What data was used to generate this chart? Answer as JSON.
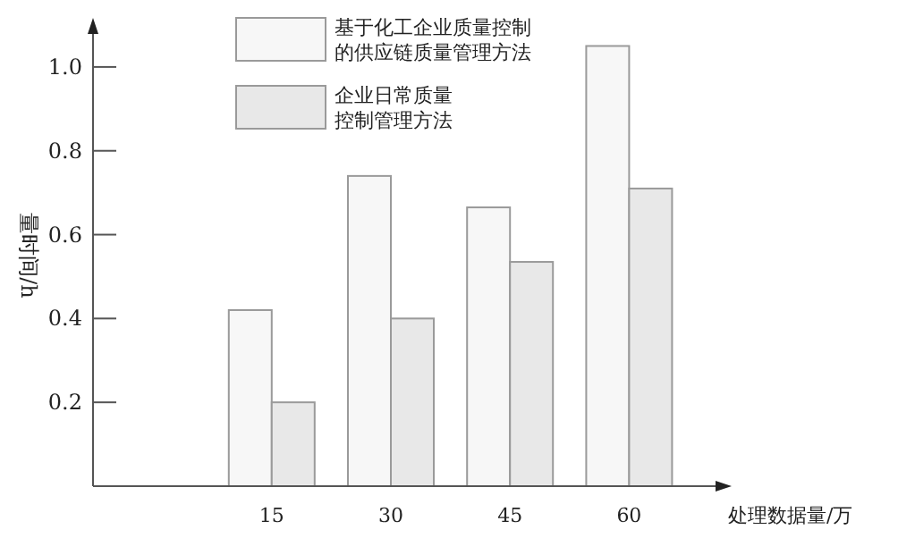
{
  "chart_data": {
    "type": "bar",
    "ylabel": "量时间/h",
    "xlabel": "处理数据量/万",
    "categories": [
      null,
      "15",
      "30",
      "45",
      "60"
    ],
    "series": [
      {
        "name": "基于化工企业质量控制的供应链质量管理方法",
        "color": "#f7f7f7",
        "values": [
          null,
          0.42,
          0.74,
          0.665,
          1.05
        ]
      },
      {
        "name": "企业日常质量控制管理方法",
        "color": "#e8e8e8",
        "values": [
          null,
          0.2,
          0.4,
          0.535,
          0.71
        ]
      }
    ],
    "ylim": [
      0,
      1.1
    ],
    "yticks": [
      0.2,
      0.4,
      0.6,
      0.8,
      {
        "value": 1.0,
        "label": "1.0"
      }
    ],
    "grid": false,
    "legend": "top"
  }
}
